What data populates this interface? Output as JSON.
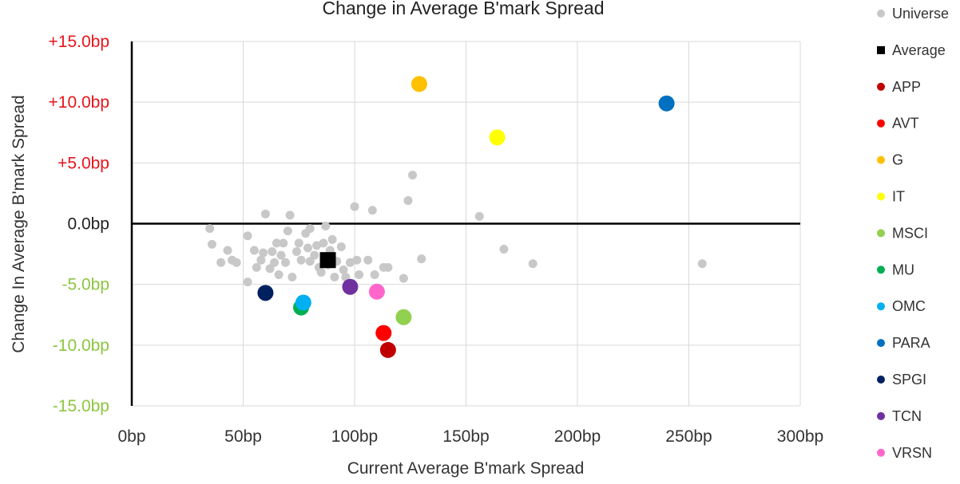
{
  "chart_data": {
    "type": "scatter",
    "title": "Change in Average B'mark Spread",
    "xlabel": "Current Average B'mark Spread",
    "ylabel": "Change In Average B'mark Spread",
    "xlim": [
      0,
      300
    ],
    "ylim": [
      -15,
      15
    ],
    "x_ticks": [
      {
        "value": 0,
        "label": "0bp"
      },
      {
        "value": 50,
        "label": "50bp"
      },
      {
        "value": 100,
        "label": "100bp"
      },
      {
        "value": 150,
        "label": "150bp"
      },
      {
        "value": 200,
        "label": "200bp"
      },
      {
        "value": 250,
        "label": "250bp"
      },
      {
        "value": 300,
        "label": "300bp"
      }
    ],
    "y_ticks": [
      {
        "value": 15,
        "label": "+15.0bp",
        "color": "#e8141b"
      },
      {
        "value": 10,
        "label": "+10.0bp",
        "color": "#e8141b"
      },
      {
        "value": 5,
        "label": "+5.0bp",
        "color": "#e8141b"
      },
      {
        "value": 0,
        "label": "0.0bp",
        "color": "#222222"
      },
      {
        "value": -5,
        "label": "-5.0bp",
        "color": "#8cc63f"
      },
      {
        "value": -10,
        "label": "-10.0bp",
        "color": "#8cc63f"
      },
      {
        "value": -15,
        "label": "-15.0bp",
        "color": "#8cc63f"
      }
    ],
    "grid": true,
    "legend_position": "right",
    "series": [
      {
        "name": "Universe",
        "color": "#c8c8c8",
        "marker": "circle-small",
        "points": [
          [
            35,
            -0.4
          ],
          [
            36,
            -1.7
          ],
          [
            40,
            -3.2
          ],
          [
            43,
            -2.2
          ],
          [
            45,
            -3.0
          ],
          [
            47,
            -3.2
          ],
          [
            52,
            -4.8
          ],
          [
            52,
            -1.0
          ],
          [
            55,
            -2.2
          ],
          [
            56,
            -3.6
          ],
          [
            58,
            -3.0
          ],
          [
            60,
            0.8
          ],
          [
            59,
            -2.4
          ],
          [
            62,
            -3.7
          ],
          [
            63,
            -2.3
          ],
          [
            64,
            -3.2
          ],
          [
            65,
            -1.6
          ],
          [
            66,
            -4.2
          ],
          [
            67,
            -2.6
          ],
          [
            68,
            -1.6
          ],
          [
            69,
            -3.2
          ],
          [
            70,
            -0.6
          ],
          [
            71,
            0.7
          ],
          [
            72,
            -4.4
          ],
          [
            74,
            -2.3
          ],
          [
            75,
            -1.6
          ],
          [
            76,
            -3.0
          ],
          [
            78,
            -0.8
          ],
          [
            79,
            -2.0
          ],
          [
            80,
            -3.1
          ],
          [
            80,
            -0.4
          ],
          [
            82,
            -2.6
          ],
          [
            83,
            -1.8
          ],
          [
            84,
            -3.6
          ],
          [
            85,
            -4.0
          ],
          [
            86,
            -1.6
          ],
          [
            87,
            -0.2
          ],
          [
            88,
            -3.4
          ],
          [
            89,
            -2.2
          ],
          [
            90,
            -1.3
          ],
          [
            91,
            -4.4
          ],
          [
            92,
            -3.1
          ],
          [
            94,
            -1.9
          ],
          [
            95,
            -3.8
          ],
          [
            96,
            -4.4
          ],
          [
            98,
            -3.2
          ],
          [
            100,
            1.4
          ],
          [
            101,
            -3.0
          ],
          [
            102,
            -4.2
          ],
          [
            106,
            -3.0
          ],
          [
            108,
            1.1
          ],
          [
            109,
            -4.2
          ],
          [
            113,
            -3.6
          ],
          [
            115,
            -3.6
          ],
          [
            122,
            -4.5
          ],
          [
            124,
            1.9
          ],
          [
            126,
            4.0
          ],
          [
            130,
            -2.9
          ],
          [
            156,
            0.6
          ],
          [
            167,
            -2.1
          ],
          [
            180,
            -3.3
          ],
          [
            256,
            -3.3
          ]
        ]
      },
      {
        "name": "Average",
        "color": "#000000",
        "marker": "square",
        "points": [
          [
            88,
            -3.0
          ]
        ]
      },
      {
        "name": "APP",
        "color": "#c00000",
        "marker": "circle",
        "points": [
          [
            115,
            -10.4
          ]
        ]
      },
      {
        "name": "AVT",
        "color": "#ff0000",
        "marker": "circle",
        "points": [
          [
            113,
            -9.0
          ]
        ]
      },
      {
        "name": "G",
        "color": "#ffc000",
        "marker": "circle",
        "points": [
          [
            129,
            11.5
          ]
        ]
      },
      {
        "name": "IT",
        "color": "#ffff00",
        "marker": "circle",
        "points": [
          [
            164,
            7.1
          ]
        ]
      },
      {
        "name": "MSCI",
        "color": "#92d050",
        "marker": "circle",
        "points": [
          [
            122,
            -7.7
          ]
        ]
      },
      {
        "name": "MU",
        "color": "#00b050",
        "marker": "circle",
        "points": [
          [
            76,
            -6.9
          ]
        ]
      },
      {
        "name": "OMC",
        "color": "#00b0f0",
        "marker": "circle",
        "points": [
          [
            77,
            -6.5
          ]
        ]
      },
      {
        "name": "PARA",
        "color": "#0070c0",
        "marker": "circle",
        "points": [
          [
            240,
            9.9
          ]
        ]
      },
      {
        "name": "SPGI",
        "color": "#002060",
        "marker": "circle",
        "points": [
          [
            60,
            -5.7
          ]
        ]
      },
      {
        "name": "TCN",
        "color": "#7030a0",
        "marker": "circle",
        "points": [
          [
            98,
            -5.2
          ]
        ]
      },
      {
        "name": "VRSN",
        "color": "#ff66cc",
        "marker": "circle",
        "points": [
          [
            110,
            -5.6
          ]
        ]
      }
    ]
  }
}
